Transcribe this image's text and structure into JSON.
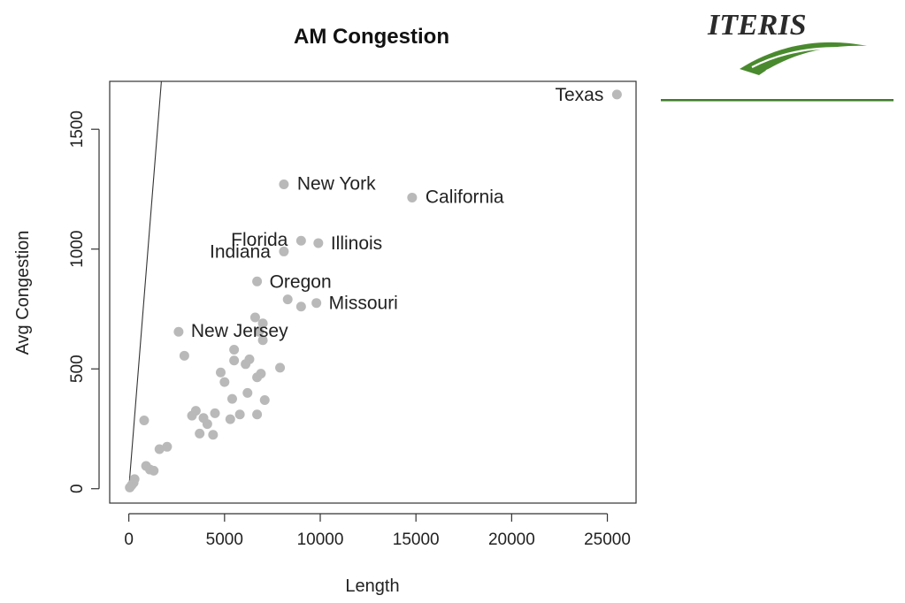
{
  "logo": {
    "text": "ITERIS",
    "brand_colors": {
      "green": "#4a8a2e",
      "dark": "#2b2b2b",
      "rule": "#3f7d2a"
    }
  },
  "chart_data": {
    "type": "scatter",
    "title": "AM Congestion",
    "xlabel": "Length",
    "ylabel": "Avg Congestion",
    "xlim": [
      -1000,
      26500
    ],
    "ylim": [
      -60,
      1700
    ],
    "xticks": [
      0,
      5000,
      10000,
      15000,
      20000,
      25000
    ],
    "yticks": [
      0,
      500,
      1000,
      1500
    ],
    "point_color": "#b9b9b9",
    "grid": false,
    "reference_line": {
      "from": [
        0,
        0
      ],
      "to": [
        1700,
        1700
      ]
    },
    "points": [
      {
        "x": 25500,
        "y": 1645,
        "label": "Texas"
      },
      {
        "x": 8100,
        "y": 1270,
        "label": "New York"
      },
      {
        "x": 14800,
        "y": 1215,
        "label": "California"
      },
      {
        "x": 9000,
        "y": 1035,
        "label": "Florida"
      },
      {
        "x": 9900,
        "y": 1025,
        "label": "Illinois"
      },
      {
        "x": 8100,
        "y": 990,
        "label": "Indiana"
      },
      {
        "x": 6700,
        "y": 865,
        "label": "Oregon"
      },
      {
        "x": 9800,
        "y": 775,
        "label": "Missouri"
      },
      {
        "x": 2600,
        "y": 655,
        "label": "New Jersey"
      },
      {
        "x": 8300,
        "y": 790
      },
      {
        "x": 9000,
        "y": 760
      },
      {
        "x": 6600,
        "y": 715
      },
      {
        "x": 7000,
        "y": 690
      },
      {
        "x": 6800,
        "y": 655
      },
      {
        "x": 7000,
        "y": 620
      },
      {
        "x": 2900,
        "y": 555
      },
      {
        "x": 5500,
        "y": 580
      },
      {
        "x": 5500,
        "y": 535
      },
      {
        "x": 6300,
        "y": 540
      },
      {
        "x": 6100,
        "y": 520
      },
      {
        "x": 7900,
        "y": 505
      },
      {
        "x": 4800,
        "y": 485
      },
      {
        "x": 6900,
        "y": 480
      },
      {
        "x": 6700,
        "y": 465
      },
      {
        "x": 5000,
        "y": 445
      },
      {
        "x": 6200,
        "y": 400
      },
      {
        "x": 5400,
        "y": 375
      },
      {
        "x": 7100,
        "y": 370
      },
      {
        "x": 800,
        "y": 285
      },
      {
        "x": 3500,
        "y": 325
      },
      {
        "x": 3300,
        "y": 305
      },
      {
        "x": 4500,
        "y": 315
      },
      {
        "x": 5800,
        "y": 310
      },
      {
        "x": 6700,
        "y": 310
      },
      {
        "x": 3900,
        "y": 295
      },
      {
        "x": 5300,
        "y": 290
      },
      {
        "x": 4100,
        "y": 270
      },
      {
        "x": 3700,
        "y": 230
      },
      {
        "x": 4400,
        "y": 225
      },
      {
        "x": 2000,
        "y": 175
      },
      {
        "x": 1600,
        "y": 165
      },
      {
        "x": 900,
        "y": 95
      },
      {
        "x": 1100,
        "y": 80
      },
      {
        "x": 1300,
        "y": 75
      },
      {
        "x": 300,
        "y": 40
      },
      {
        "x": 250,
        "y": 25
      },
      {
        "x": 150,
        "y": 15
      },
      {
        "x": 50,
        "y": 5
      }
    ]
  }
}
